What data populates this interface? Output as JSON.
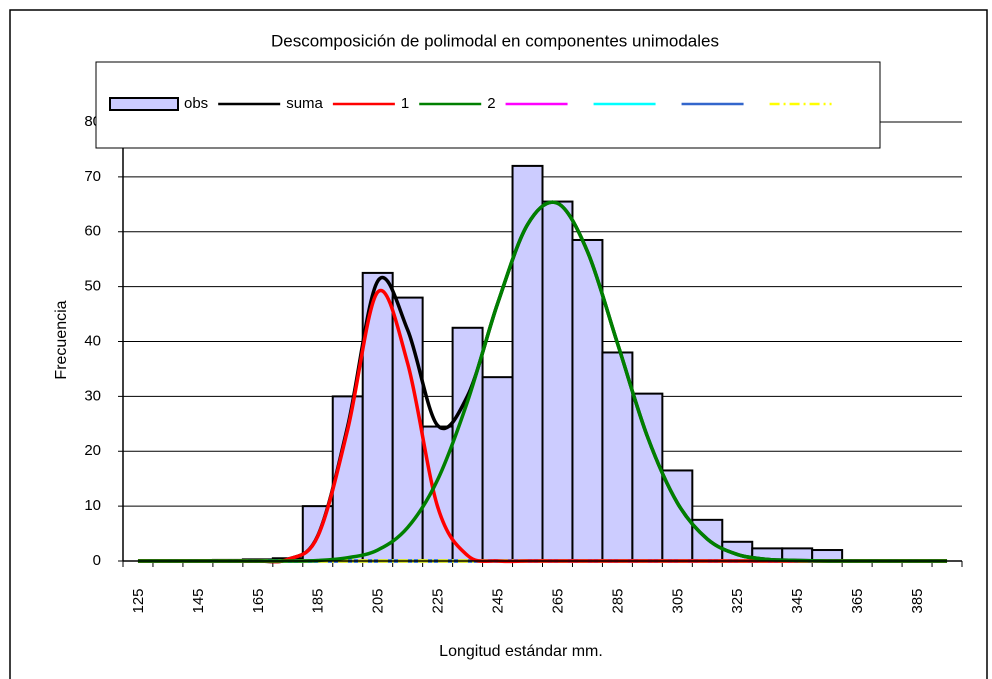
{
  "chart_data": {
    "type": "combo",
    "title": "Descomposición de polimodal en componentes unimodales",
    "x_label": "Longitud estándar mm.",
    "y_label": "Frecuencia",
    "categories": [
      "125",
      null,
      "145",
      null,
      "165",
      null,
      "185",
      null,
      "205",
      null,
      "225",
      null,
      "245",
      null,
      "265",
      null,
      "285",
      null,
      "305",
      null,
      "325",
      null,
      "345",
      null,
      "365",
      null,
      "385",
      null
    ],
    "ylim": [
      0,
      80
    ],
    "yticks": [
      0,
      10,
      20,
      30,
      40,
      50,
      60,
      70,
      80
    ],
    "grid": true,
    "series": [
      {
        "name": "obs",
        "type": "bar",
        "color": "#ccccff",
        "values": [
          0,
          0,
          0,
          0.2,
          0.3,
          0.5,
          10,
          30,
          52.5,
          48,
          24.5,
          42.5,
          33.5,
          72,
          65.5,
          58.5,
          38,
          30.5,
          16.5,
          7.5,
          3.5,
          2.3,
          2.3,
          2,
          0,
          0,
          0,
          0
        ]
      },
      {
        "name": "suma",
        "type": "line",
        "color": "#000000",
        "values": [
          0,
          0,
          0,
          0,
          0,
          0.3,
          4.6,
          24.6,
          51,
          42.1,
          24.7,
          30.1,
          46.9,
          61.3,
          65.2,
          56.4,
          39.7,
          22.7,
          10.6,
          4,
          1.2,
          0.3,
          0.1,
          0,
          0,
          0,
          0,
          0
        ]
      },
      {
        "name": "1",
        "type": "line",
        "color": "#ff0000",
        "values": [
          0,
          0,
          0,
          0,
          0,
          0.3,
          4.5,
          24,
          49,
          36,
          9.9,
          1,
          0,
          0,
          0,
          0,
          0,
          0,
          0,
          0,
          0,
          0,
          0,
          0,
          0,
          0,
          0,
          0
        ]
      },
      {
        "name": "2",
        "type": "line",
        "color": "#008000",
        "values": [
          0,
          0,
          0,
          0,
          0,
          0,
          0.1,
          0.6,
          2,
          6.1,
          14.8,
          29.1,
          46.9,
          61.3,
          65.2,
          56.4,
          39.7,
          22.7,
          10.6,
          4,
          1.2,
          0.3,
          0.1,
          0,
          0,
          0,
          0,
          0
        ]
      },
      {
        "type": "line",
        "color": "#ff00ff",
        "values": [
          0,
          0,
          0,
          0,
          0,
          0,
          0,
          0,
          0,
          0,
          0,
          0,
          0,
          0,
          0,
          0,
          0,
          0,
          0,
          0,
          0,
          0,
          0,
          0,
          0,
          0,
          0,
          0
        ]
      },
      {
        "type": "line",
        "color": "#00ffff",
        "values": [
          0,
          0,
          0,
          0,
          0,
          0,
          0,
          0,
          0,
          0,
          0,
          0,
          0,
          0,
          0,
          0,
          0,
          0,
          0,
          0,
          0,
          0,
          0,
          0,
          0,
          0,
          0,
          0
        ]
      },
      {
        "type": "line",
        "color": "#3366cc",
        "values": [
          0,
          0,
          0,
          0,
          0,
          0,
          0,
          0,
          0,
          0,
          0,
          0,
          0,
          0,
          0,
          0,
          0,
          0,
          0,
          0,
          0,
          0,
          0,
          0,
          0,
          0,
          0,
          0
        ]
      },
      {
        "type": "line",
        "color": "#ffff00",
        "dash": true,
        "values": [
          0,
          0,
          0,
          0,
          0,
          0,
          0,
          0,
          0,
          0,
          0,
          0,
          0,
          0,
          0,
          0,
          0,
          0,
          0,
          0,
          0,
          0,
          0,
          0,
          0,
          0,
          0,
          0
        ]
      }
    ]
  }
}
